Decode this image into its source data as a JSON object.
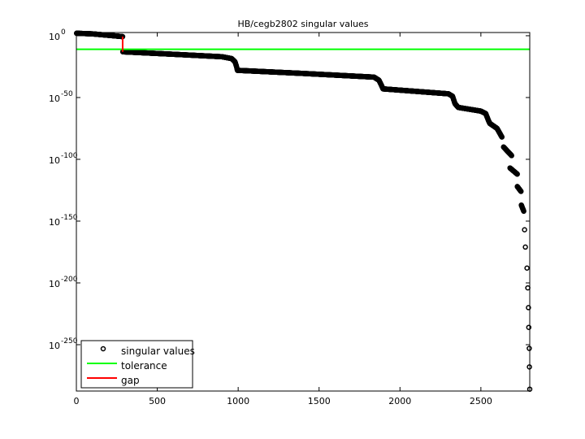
{
  "chart_data": {
    "type": "scatter",
    "title": "HB/cegb2802 singular values",
    "xlabel": "",
    "ylabel": "",
    "y_scale": "log10",
    "xlim": [
      0,
      2802
    ],
    "ylim_log10": [
      -287.5,
      2.6
    ],
    "x_ticks": [
      0,
      500,
      1000,
      1500,
      2000,
      2500
    ],
    "x_tick_labels": [
      "0",
      "500",
      "1000",
      "1500",
      "2000",
      "2500"
    ],
    "y_ticks_log10": [
      0,
      -50,
      -100,
      -150,
      -200,
      -250
    ],
    "y_tick_base": "10",
    "y_tick_exponents": [
      "0",
      "-50",
      "-100",
      "-150",
      "-200",
      "-250"
    ],
    "legend": {
      "placement": "bottom-left",
      "entries": [
        "singular values",
        "tolerance",
        "gap"
      ]
    },
    "series": [
      {
        "name": "singular values",
        "marker": "circle",
        "color": "#000000",
        "note": "log10 of singular value vs index; continuous pieces interpolated per integer index",
        "pieces": [
          [
            [
              1,
              2
            ],
            [
              100,
              1.5
            ],
            [
              286,
              -0.7
            ]
          ],
          [
            [
              287,
              -13
            ],
            [
              600,
              -15
            ],
            [
              900,
              -17
            ],
            [
              960,
              -18.5
            ],
            [
              980,
              -21
            ],
            [
              990,
              -25
            ],
            [
              995,
              -28
            ]
          ],
          [
            [
              996,
              -28
            ],
            [
              1400,
              -30.5
            ],
            [
              1840,
              -33.5
            ],
            [
              1870,
              -36
            ],
            [
              1885,
              -40
            ],
            [
              1895,
              -43
            ]
          ],
          [
            [
              1896,
              -43
            ],
            [
              2300,
              -47
            ],
            [
              2325,
              -49
            ],
            [
              2340,
              -55
            ],
            [
              2360,
              -58
            ],
            [
              2500,
              -61
            ],
            [
              2530,
              -63
            ],
            [
              2545,
              -68
            ],
            [
              2555,
              -71
            ]
          ],
          [
            [
              2556,
              -71
            ],
            [
              2600,
              -75
            ],
            [
              2630,
              -82
            ]
          ],
          [
            [
              2640,
              -90
            ],
            [
              2690,
              -97
            ]
          ],
          [
            [
              2680,
              -107
            ],
            [
              2725,
              -112
            ]
          ],
          [
            [
              2725,
              -122
            ],
            [
              2748,
              -126
            ]
          ],
          [
            [
              2750,
              -137
            ],
            [
              2765,
              -142
            ]
          ]
        ],
        "points": [
          [
            2770,
            -157
          ],
          [
            2775,
            -171
          ],
          [
            2785,
            -188
          ],
          [
            2790,
            -204
          ],
          [
            2794,
            -220
          ],
          [
            2796,
            -236
          ],
          [
            2799,
            -253
          ],
          [
            2800,
            -268
          ],
          [
            2802,
            -286
          ]
        ]
      },
      {
        "name": "tolerance",
        "color": "#00ff00",
        "y_log10": -11
      },
      {
        "name": "gap",
        "color": "#ff0000",
        "x": 286,
        "y_log10_range": [
          -0.7,
          -13
        ]
      }
    ]
  }
}
